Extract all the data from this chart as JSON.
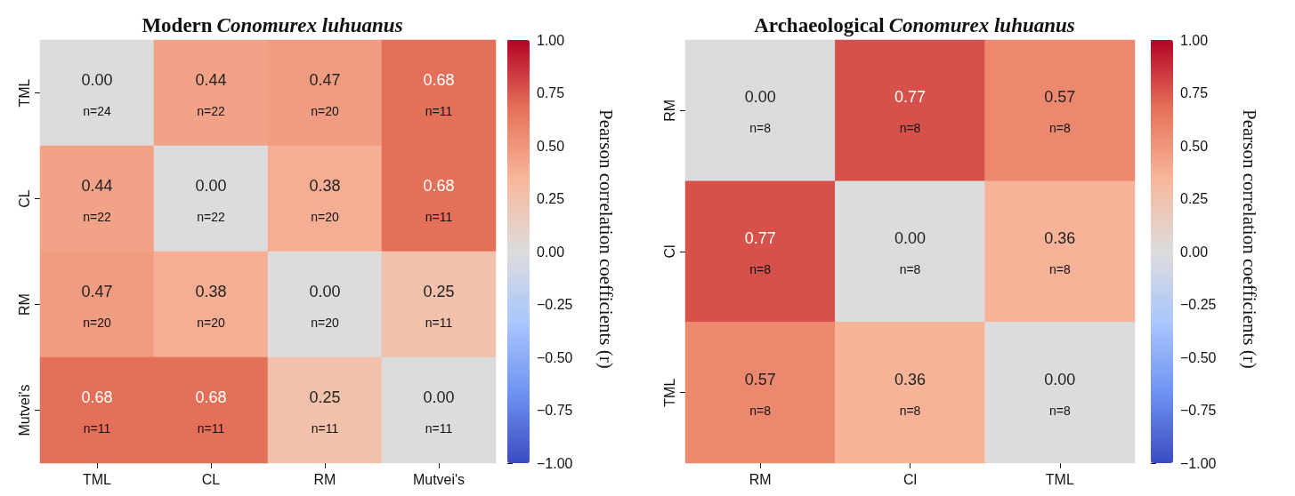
{
  "chart_data": [
    {
      "type": "heatmap",
      "title": "Modern Conomurex luhuanus",
      "clabel": "Pearson correlation coefficients (r)",
      "categories": [
        "TML",
        "CL",
        "RM",
        "Mutvei's"
      ],
      "y_categories": [
        "TML",
        "CL",
        "RM",
        "Mutvei's"
      ],
      "cells": [
        [
          0.0,
          0.44,
          0.47,
          0.68
        ],
        [
          0.44,
          0.0,
          0.38,
          0.68
        ],
        [
          0.47,
          0.38,
          0.0,
          0.25
        ],
        [
          0.68,
          0.68,
          0.25,
          0.0
        ]
      ],
      "cell_labels": [
        [
          "0.00\nn=24",
          "0.44\nn=22",
          "0.47\nn=20",
          "0.68\nn=11"
        ],
        [
          "0.44\nn=22",
          "0.00\nn=22",
          "0.38\nn=20",
          "0.68\nn=11"
        ],
        [
          "0.47\nn=20",
          "0.38\nn=20",
          "0.00\nn=20",
          "0.25\nn=11"
        ],
        [
          "0.68\nn=11",
          "0.68\nn=11",
          "0.25\nn=11",
          "0.00\nn=11"
        ]
      ],
      "clim": [
        -1,
        1
      ],
      "cticks": [
        {
          "value": -1,
          "label": "−1.00"
        },
        {
          "value": -0.75,
          "label": "−0.75"
        },
        {
          "value": -0.5,
          "label": "−0.50"
        },
        {
          "value": -0.25,
          "label": "−0.25"
        },
        {
          "value": 0,
          "label": "0.00"
        },
        {
          "value": 0.25,
          "label": "0.25"
        },
        {
          "value": 0.5,
          "label": "0.50"
        },
        {
          "value": 0.75,
          "label": "0.75"
        },
        {
          "value": 1,
          "label": "1.00"
        }
      ]
    },
    {
      "type": "heatmap",
      "title": "Archaeological Conomurex luhuanus",
      "clabel": "Pearson correlation coefficients (r)",
      "categories": [
        "RM",
        "Cl",
        "TML"
      ],
      "y_categories": [
        "RM",
        "Cl",
        "TML"
      ],
      "cells": [
        [
          0.0,
          0.77,
          0.57
        ],
        [
          0.77,
          0.0,
          0.36
        ],
        [
          0.57,
          0.36,
          0.0
        ]
      ],
      "cell_labels": [
        [
          "0.00\nn=8",
          "0.77\nn=8",
          "0.57\nn=8"
        ],
        [
          "0.77\nn=8",
          "0.00\nn=8",
          "0.36\nn=8"
        ],
        [
          "0.57\nn=8",
          "0.36\nn=8",
          "0.00\nn=8"
        ]
      ],
      "clim": [
        -1,
        1
      ],
      "cticks": [
        {
          "value": -1,
          "label": "−1.00"
        },
        {
          "value": -0.75,
          "label": "−0.75"
        },
        {
          "value": -0.5,
          "label": "−0.50"
        },
        {
          "value": -0.25,
          "label": "−0.25"
        },
        {
          "value": 0,
          "label": "0.00"
        },
        {
          "value": 0.25,
          "label": "0.25"
        },
        {
          "value": 0.5,
          "label": "0.50"
        },
        {
          "value": 0.75,
          "label": "0.75"
        },
        {
          "value": 1,
          "label": "1.00"
        }
      ]
    }
  ]
}
